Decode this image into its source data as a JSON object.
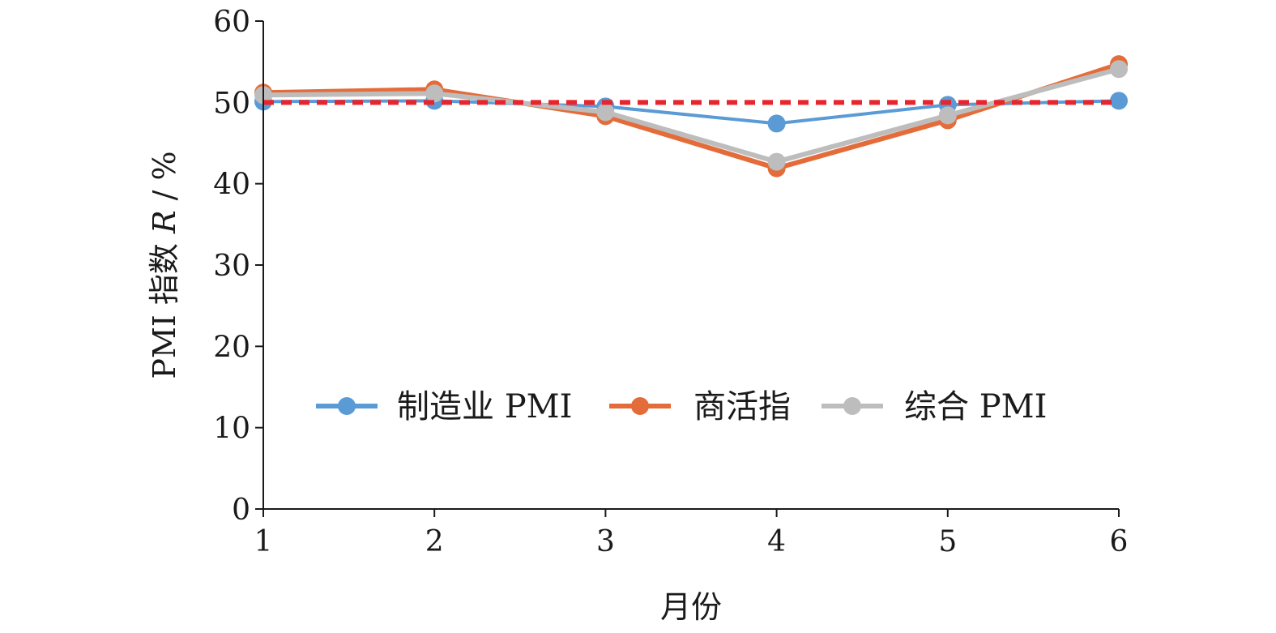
{
  "chart_data": {
    "type": "line",
    "title": "",
    "xlabel": "月份",
    "ylabel_prefix": "PMI 指数 ",
    "ylabel_var": "R",
    "ylabel_suffix": " / %",
    "x": [
      1,
      2,
      3,
      4,
      5,
      6
    ],
    "x_tick_labels": [
      "1",
      "2",
      "3",
      "4",
      "5",
      "6"
    ],
    "xlim": [
      1,
      6
    ],
    "ylim": [
      0,
      60
    ],
    "y_ticks": [
      0,
      10,
      20,
      30,
      40,
      50,
      60
    ],
    "y_tick_labels": [
      "0",
      "10",
      "20",
      "30",
      "40",
      "50",
      "60"
    ],
    "grid": false,
    "legend_position": "inside-bottom-center",
    "series": [
      {
        "name": "制造业 PMI",
        "color": "#5b9bd5",
        "values": [
          50.1,
          50.2,
          49.5,
          47.4,
          49.7,
          50.2
        ]
      },
      {
        "name": "商活指",
        "color": "#e46c3a",
        "values": [
          51.2,
          51.6,
          48.3,
          41.9,
          47.8,
          54.7
        ]
      },
      {
        "name": "综合 PMI",
        "color": "#bdbdbd",
        "values": [
          50.9,
          51.1,
          48.8,
          42.7,
          48.4,
          54.1
        ]
      }
    ],
    "reference_line": {
      "value": 50,
      "color": "#e8242c"
    }
  }
}
